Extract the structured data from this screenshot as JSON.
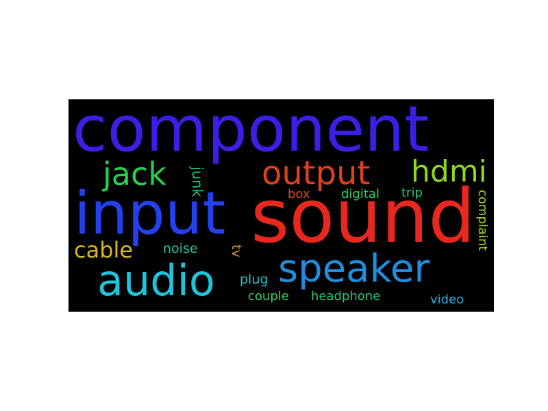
{
  "chart_data": {
    "type": "wordcloud",
    "background": "#000000",
    "words": [
      {
        "text": "component",
        "color": "#3b1fe6"
      },
      {
        "text": "sound",
        "color": "#e8281e"
      },
      {
        "text": "input",
        "color": "#2341ee"
      },
      {
        "text": "speaker",
        "color": "#1f8ee0"
      },
      {
        "text": "audio",
        "color": "#1fc4dc"
      },
      {
        "text": "output",
        "color": "#e0401e"
      },
      {
        "text": "jack",
        "color": "#22d44e"
      },
      {
        "text": "hdmi",
        "color": "#8ed81e"
      },
      {
        "text": "cable",
        "color": "#d8b81e"
      },
      {
        "text": "junk",
        "color": "#22c46c"
      },
      {
        "text": "box",
        "color": "#d84a1e"
      },
      {
        "text": "digital",
        "color": "#22d46a"
      },
      {
        "text": "trip",
        "color": "#22cc7e"
      },
      {
        "text": "complaint",
        "color": "#a8d81e"
      },
      {
        "text": "noise",
        "color": "#22c4a8"
      },
      {
        "text": "tv",
        "color": "#d89a1e"
      },
      {
        "text": "plug",
        "color": "#22c4c4"
      },
      {
        "text": "couple",
        "color": "#2ad05a"
      },
      {
        "text": "headphone",
        "color": "#22c87a"
      },
      {
        "text": "video",
        "color": "#1fb0dc"
      }
    ]
  }
}
